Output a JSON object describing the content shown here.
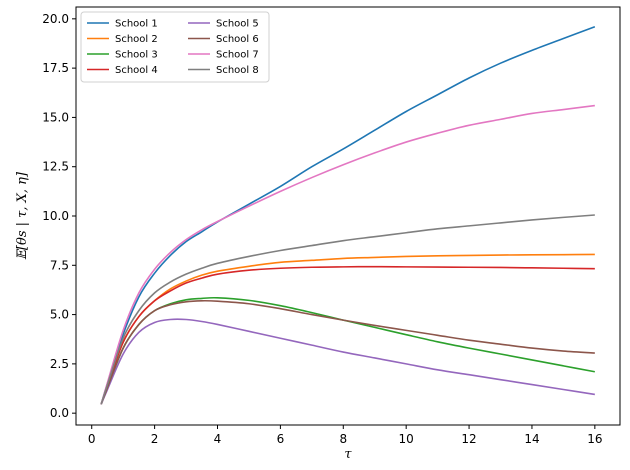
{
  "chart_data": {
    "type": "line",
    "xlabel": "τ",
    "ylabel": "𝔼[θs | τ, X, η]",
    "xlim": [
      -0.5,
      16.8
    ],
    "ylim": [
      -0.6,
      20.6
    ],
    "x_ticks": [
      0,
      2,
      4,
      6,
      8,
      10,
      12,
      14,
      16
    ],
    "x_tick_labels": [
      "0",
      "2",
      "4",
      "6",
      "8",
      "10",
      "12",
      "14",
      "16"
    ],
    "y_ticks": [
      0,
      2.5,
      5,
      7.5,
      10,
      12.5,
      15,
      17.5,
      20
    ],
    "y_tick_labels": [
      "0.0",
      "2.5",
      "5.0",
      "7.5",
      "10.0",
      "12.5",
      "15.0",
      "17.5",
      "20.0"
    ],
    "grid": false,
    "legend_position": "upper-left",
    "legend_columns": 2,
    "x": [
      0.3,
      0.5,
      1.0,
      1.5,
      2.0,
      2.5,
      3.0,
      3.5,
      4.0,
      5.0,
      6.0,
      7.0,
      8.0,
      9.0,
      10.0,
      11.0,
      12.0,
      13.0,
      14.0,
      15.0,
      16.0
    ],
    "series": [
      {
        "name": "School 1",
        "color": "#1f77b4",
        "values": [
          0.45,
          1.5,
          4.0,
          5.9,
          7.1,
          8.0,
          8.7,
          9.2,
          9.7,
          10.6,
          11.5,
          12.5,
          13.4,
          14.35,
          15.3,
          16.15,
          17.0,
          17.75,
          18.4,
          19.0,
          19.6
        ]
      },
      {
        "name": "School 2",
        "color": "#ff7f0e",
        "values": [
          0.45,
          1.4,
          3.6,
          4.9,
          5.7,
          6.3,
          6.7,
          7.0,
          7.2,
          7.45,
          7.65,
          7.75,
          7.85,
          7.9,
          7.95,
          7.98,
          8.0,
          8.02,
          8.03,
          8.04,
          8.05
        ]
      },
      {
        "name": "School 3",
        "color": "#2ca02c",
        "values": [
          0.45,
          1.3,
          3.3,
          4.5,
          5.2,
          5.55,
          5.75,
          5.82,
          5.85,
          5.72,
          5.45,
          5.1,
          4.72,
          4.35,
          3.98,
          3.62,
          3.3,
          3.0,
          2.7,
          2.4,
          2.1
        ]
      },
      {
        "name": "School 4",
        "color": "#d62728",
        "values": [
          0.45,
          1.4,
          3.6,
          4.9,
          5.7,
          6.2,
          6.6,
          6.85,
          7.05,
          7.25,
          7.35,
          7.4,
          7.42,
          7.43,
          7.42,
          7.41,
          7.4,
          7.39,
          7.37,
          7.35,
          7.33
        ]
      },
      {
        "name": "School 5",
        "color": "#9467bd",
        "values": [
          0.45,
          1.2,
          3.0,
          4.1,
          4.6,
          4.75,
          4.75,
          4.65,
          4.5,
          4.15,
          3.8,
          3.45,
          3.1,
          2.8,
          2.5,
          2.2,
          1.95,
          1.7,
          1.45,
          1.2,
          0.95
        ]
      },
      {
        "name": "School 6",
        "color": "#8c564b",
        "values": [
          0.45,
          1.3,
          3.3,
          4.5,
          5.2,
          5.5,
          5.65,
          5.7,
          5.68,
          5.55,
          5.3,
          5.0,
          4.72,
          4.45,
          4.2,
          3.95,
          3.7,
          3.5,
          3.3,
          3.15,
          3.05
        ]
      },
      {
        "name": "School 7",
        "color": "#e377c2",
        "values": [
          0.45,
          1.55,
          4.2,
          6.1,
          7.3,
          8.15,
          8.8,
          9.3,
          9.72,
          10.5,
          11.25,
          11.95,
          12.6,
          13.2,
          13.75,
          14.2,
          14.6,
          14.9,
          15.2,
          15.4,
          15.6
        ]
      },
      {
        "name": "School 8",
        "color": "#7f7f7f",
        "values": [
          0.45,
          1.45,
          3.8,
          5.2,
          6.1,
          6.65,
          7.05,
          7.35,
          7.6,
          7.95,
          8.25,
          8.5,
          8.75,
          8.95,
          9.15,
          9.35,
          9.5,
          9.65,
          9.8,
          9.93,
          10.05
        ]
      }
    ]
  }
}
